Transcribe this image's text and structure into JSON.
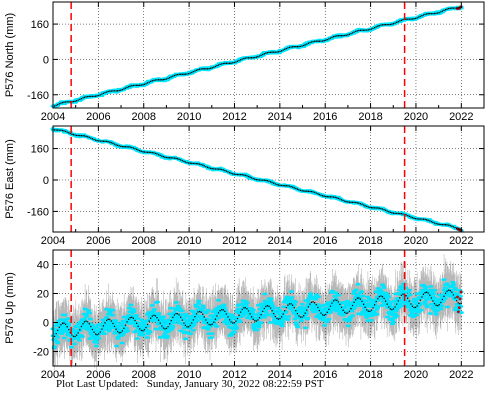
{
  "footer": {
    "label": "Plot Last Updated:",
    "timestamp": "Sunday, January 30, 2022 08:22:59 PST"
  },
  "colors": {
    "observation": "#00e5ff",
    "error_bar": "#b8b8b8",
    "model": "#000000",
    "recent": "#cc0000",
    "event_line": "#ff0000"
  },
  "chart_data": [
    {
      "type": "scatter",
      "ylabel": "P576 North (mm)",
      "xlim": [
        2004.0,
        2023.0
      ],
      "ylim": [
        -220,
        260
      ],
      "xticks": [
        2004,
        2006,
        2008,
        2010,
        2012,
        2014,
        2016,
        2018,
        2020,
        2022
      ],
      "yticks": [
        -160,
        0,
        160
      ],
      "grid": true,
      "event_lines": [
        2004.8,
        2019.5
      ],
      "trend": {
        "start": [
          2004.0,
          -210
        ],
        "end": [
          2022.0,
          240
        ]
      },
      "seasonal_amplitude": 4,
      "scatter_spread": 5,
      "error_spread": 0,
      "red_points_after": 2021.8,
      "series": [
        {
          "values": [
            [
              2004.0,
              -210
            ],
            [
              2006.0,
              -160
            ],
            [
              2008.0,
              -110
            ],
            [
              2010.0,
              -60
            ],
            [
              2012.0,
              -10
            ],
            [
              2014.0,
              40
            ],
            [
              2016.0,
              90
            ],
            [
              2018.0,
              140
            ],
            [
              2020.0,
              190
            ],
            [
              2022.0,
              240
            ]
          ]
        }
      ]
    },
    {
      "type": "scatter",
      "ylabel": "P576 East (mm)",
      "xlim": [
        2004.0,
        2023.0
      ],
      "ylim": [
        -265,
        275
      ],
      "xticks": [
        2004,
        2006,
        2008,
        2010,
        2012,
        2014,
        2016,
        2018,
        2020,
        2022
      ],
      "yticks": [
        -160,
        0,
        160
      ],
      "grid": true,
      "event_lines": [
        2004.8,
        2019.5
      ],
      "trend": {
        "start": [
          2004.0,
          260
        ],
        "end": [
          2022.0,
          -250
        ]
      },
      "seasonal_amplitude": 4,
      "scatter_spread": 5,
      "error_spread": 0,
      "red_points_after": 2021.8,
      "series": [
        {
          "values": [
            [
              2004.0,
              260
            ],
            [
              2006.0,
              205
            ],
            [
              2008.0,
              150
            ],
            [
              2010.0,
              95
            ],
            [
              2012.0,
              40
            ],
            [
              2014.0,
              -15
            ],
            [
              2016.0,
              -70
            ],
            [
              2018.0,
              -125
            ],
            [
              2020.0,
              -185
            ],
            [
              2022.0,
              -250
            ]
          ]
        }
      ]
    },
    {
      "type": "scatter",
      "ylabel": "P576 Up (mm)",
      "xlim": [
        2004.0,
        2023.0
      ],
      "ylim": [
        -30,
        50
      ],
      "xticks": [
        2004,
        2006,
        2008,
        2010,
        2012,
        2014,
        2016,
        2018,
        2020,
        2022
      ],
      "yticks": [
        -20,
        0,
        20,
        40
      ],
      "grid": true,
      "event_lines": [
        2004.8,
        2019.5
      ],
      "trend": {
        "start": [
          2004.0,
          -6
        ],
        "end": [
          2022.0,
          18
        ]
      },
      "seasonal_amplitude": 5,
      "scatter_spread": 8,
      "error_spread": 13,
      "red_points_after": 2021.8,
      "series": [
        {
          "values": [
            [
              2004.0,
              -6
            ],
            [
              2006.0,
              -3
            ],
            [
              2008.0,
              -1
            ],
            [
              2010.0,
              1
            ],
            [
              2012.0,
              3
            ],
            [
              2014.0,
              5
            ],
            [
              2016.0,
              8
            ],
            [
              2018.0,
              10
            ],
            [
              2020.0,
              13
            ],
            [
              2022.0,
              18
            ]
          ]
        }
      ]
    }
  ]
}
